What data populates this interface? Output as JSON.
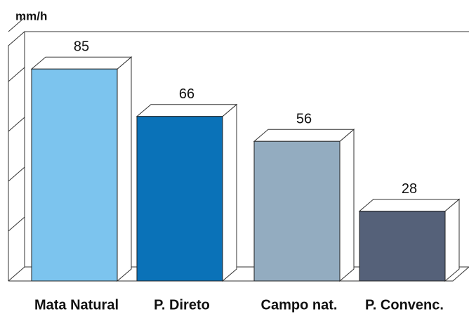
{
  "chart_data": {
    "type": "bar3d",
    "y_label": "mm/h",
    "categories": [
      "Mata Natural",
      "P. Direto",
      "Campo nat.",
      "P. Convenc."
    ],
    "values": [
      85,
      66,
      56,
      28
    ],
    "colors": [
      "#7cc4ee",
      "#0a72b8",
      "#93acc0",
      "#556179"
    ],
    "ylim": [
      0,
      100
    ],
    "yticks": [
      0,
      20,
      40,
      60,
      80,
      100
    ]
  }
}
